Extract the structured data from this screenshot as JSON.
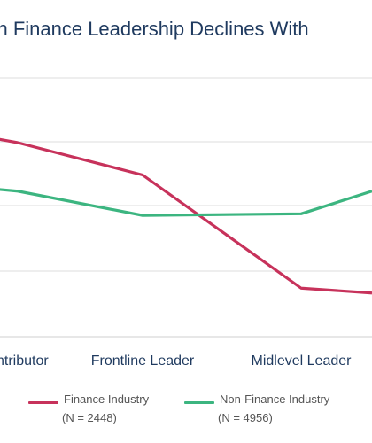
{
  "chart_data": {
    "type": "line",
    "title": "on in Finance Leadership Declines With",
    "categories": [
      "ntributor",
      "Frontline Leader",
      "Midlevel Leader"
    ],
    "series": [
      {
        "name": "Finance Industry",
        "n_label": "(N = 2448)",
        "color": "#c7325b",
        "values": [
          3.2,
          3.0,
          2.3
        ]
      },
      {
        "name": "Non-Finance Industry",
        "n_label": "(N = 4956)",
        "color": "#3cb580",
        "values": [
          2.9,
          2.75,
          2.76
        ]
      }
    ],
    "grid": true,
    "legend": "bottom"
  }
}
